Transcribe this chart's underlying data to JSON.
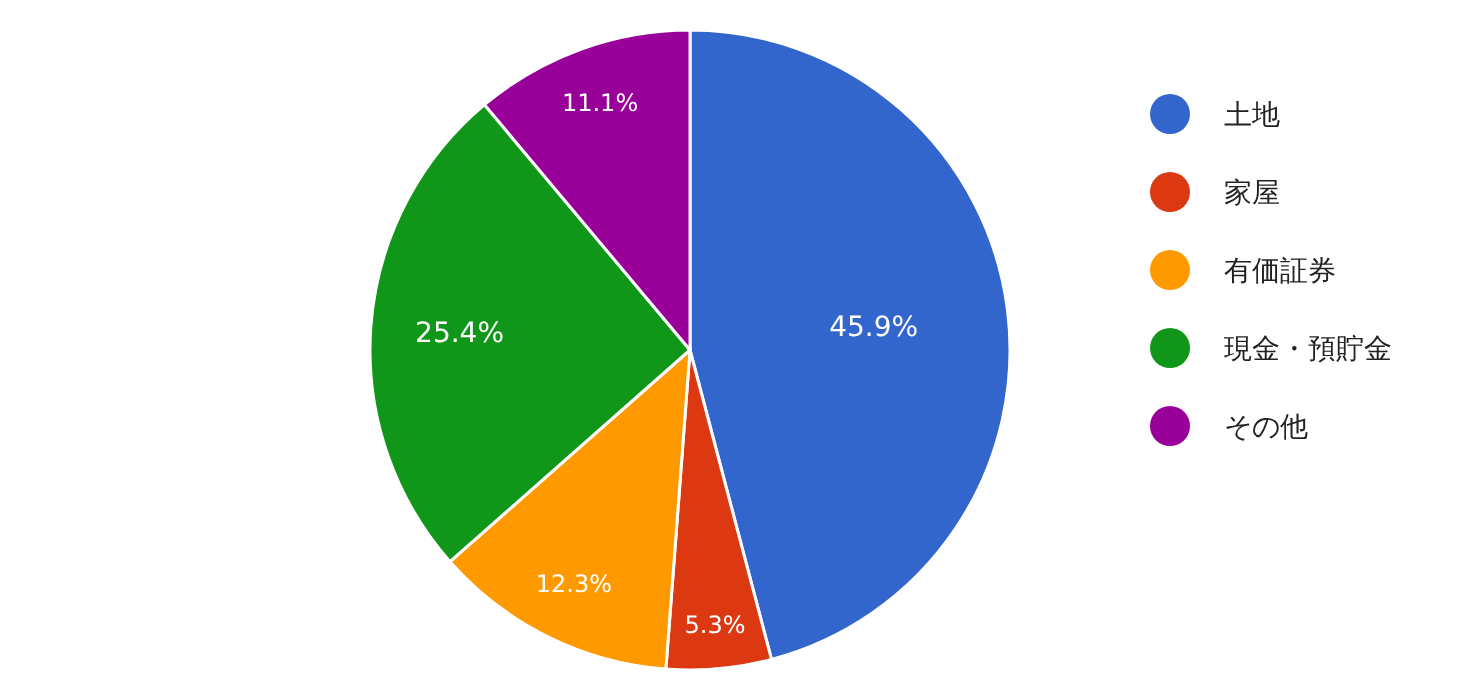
{
  "chart_data": {
    "type": "pie",
    "categories": [
      "土地",
      "家屋",
      "有価証券",
      "現金・預貯金",
      "その他"
    ],
    "values": [
      45.9,
      5.3,
      12.3,
      25.4,
      11.1
    ],
    "value_labels": [
      "45.9%",
      "5.3%",
      "12.3%",
      "25.4%",
      "11.1%"
    ],
    "colors": [
      "#3366cc",
      "#dc3912",
      "#ff9900",
      "#109618",
      "#990099"
    ],
    "legend": "right"
  }
}
